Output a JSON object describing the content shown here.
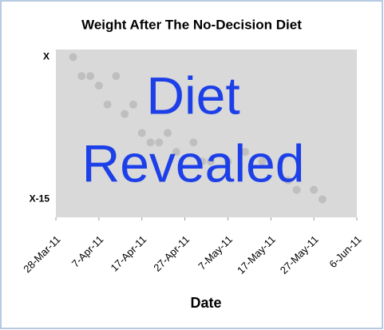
{
  "chart_data": {
    "type": "scatter",
    "title": "Weight After The No-Decision Diet",
    "x_label": "Date",
    "annotation": [
      "Diet",
      "Revealed"
    ],
    "annotation_color": "#1c3fe8",
    "x": [
      "2011-04-01",
      "2011-04-03",
      "2011-04-05",
      "2011-04-07",
      "2011-04-09",
      "2011-04-11",
      "2011-04-13",
      "2011-04-15",
      "2011-04-17",
      "2011-04-19",
      "2011-04-21",
      "2011-04-23",
      "2011-04-25",
      "2011-04-29",
      "2011-05-01",
      "2011-05-03",
      "2011-05-07",
      "2011-05-11",
      "2011-05-15",
      "2011-05-21",
      "2011-05-23",
      "2011-05-27",
      "2011-05-29"
    ],
    "values": [
      0,
      -2,
      -2,
      -3,
      -5,
      -2,
      -6,
      -5,
      -8,
      -9,
      -9,
      -8,
      -10,
      -9,
      -11,
      -11,
      -11,
      -10,
      -11,
      -13,
      -14,
      -14,
      -15
    ],
    "color": "#bfbfbf",
    "plot_background": "#d9d9d9",
    "xlim": [
      "2011-03-28",
      "2011-06-06"
    ],
    "xticks": [
      {
        "value": "2011-03-28",
        "label": "28-Mar-11"
      },
      {
        "value": "2011-04-07",
        "label": "7-Apr-11"
      },
      {
        "value": "2011-04-17",
        "label": "17-Apr-11"
      },
      {
        "value": "2011-04-27",
        "label": "27-Apr-11"
      },
      {
        "value": "2011-05-07",
        "label": "7-May-11"
      },
      {
        "value": "2011-05-17",
        "label": "17-May-11"
      },
      {
        "value": "2011-05-27",
        "label": "27-May-11"
      },
      {
        "value": "2011-06-06",
        "label": "6-Jun-11"
      }
    ],
    "ylim": [
      -16.9,
      0.8
    ],
    "yticks": [
      {
        "value": 0,
        "label": "X"
      },
      {
        "value": -15,
        "label": "X-15"
      }
    ]
  }
}
